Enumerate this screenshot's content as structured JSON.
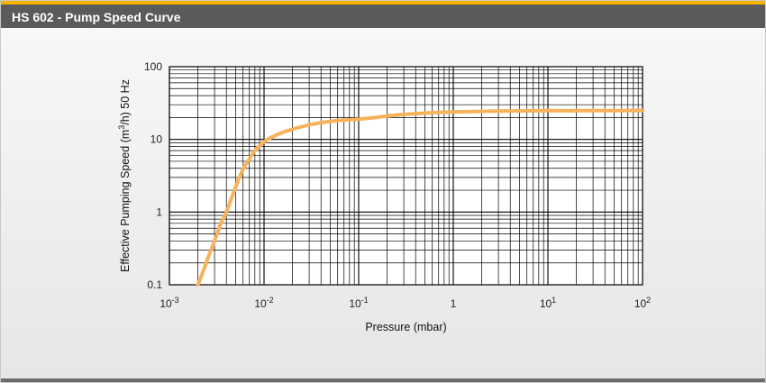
{
  "header": {
    "title": "HS 602 - Pump Speed Curve"
  },
  "colors": {
    "accent": "#f7b500",
    "header_bg": "#5a5a5a",
    "curve": "#f7b35b",
    "grid": "#000000"
  },
  "chart_data": {
    "type": "line",
    "title": "",
    "xlabel": "Pressure (mbar)",
    "ylabel": "Effective Pumping Speed (m3/h) 50 Hz",
    "x_scale": "log",
    "y_scale": "log",
    "xlim": [
      0.001,
      100
    ],
    "ylim": [
      0.1,
      100
    ],
    "grid": true,
    "x_ticks": [
      {
        "value": 0.001,
        "base": "10",
        "exp": "-3"
      },
      {
        "value": 0.01,
        "base": "10",
        "exp": "-2"
      },
      {
        "value": 0.1,
        "base": "10",
        "exp": "-1"
      },
      {
        "value": 1,
        "base": "1",
        "exp": ""
      },
      {
        "value": 10,
        "base": "10",
        "exp": "1"
      },
      {
        "value": 100,
        "base": "10",
        "exp": "2"
      }
    ],
    "y_ticks": [
      {
        "value": 0.1,
        "label": "0.1"
      },
      {
        "value": 1,
        "label": "1"
      },
      {
        "value": 10,
        "label": "10"
      },
      {
        "value": 100,
        "label": "100"
      }
    ],
    "series": [
      {
        "x": [
          0.002,
          0.0023,
          0.0026,
          0.003,
          0.0035,
          0.004,
          0.005,
          0.006,
          0.007,
          0.008,
          0.009,
          0.01,
          0.012,
          0.015,
          0.02,
          0.03,
          0.04,
          0.05,
          0.07,
          0.1,
          0.15,
          0.2,
          0.3,
          0.5,
          0.7,
          1,
          2,
          3,
          5,
          10,
          20,
          50,
          100
        ],
        "y": [
          0.1,
          0.16,
          0.25,
          0.4,
          0.7,
          1.0,
          2.2,
          3.9,
          5.4,
          7.0,
          8.2,
          9.3,
          10.7,
          12.2,
          13.8,
          15.8,
          17.0,
          17.7,
          18.4,
          19.0,
          20.0,
          21.0,
          22.0,
          23.0,
          23.5,
          23.8,
          24.3,
          24.5,
          24.6,
          24.8,
          24.8,
          24.9,
          25.0
        ]
      }
    ]
  }
}
